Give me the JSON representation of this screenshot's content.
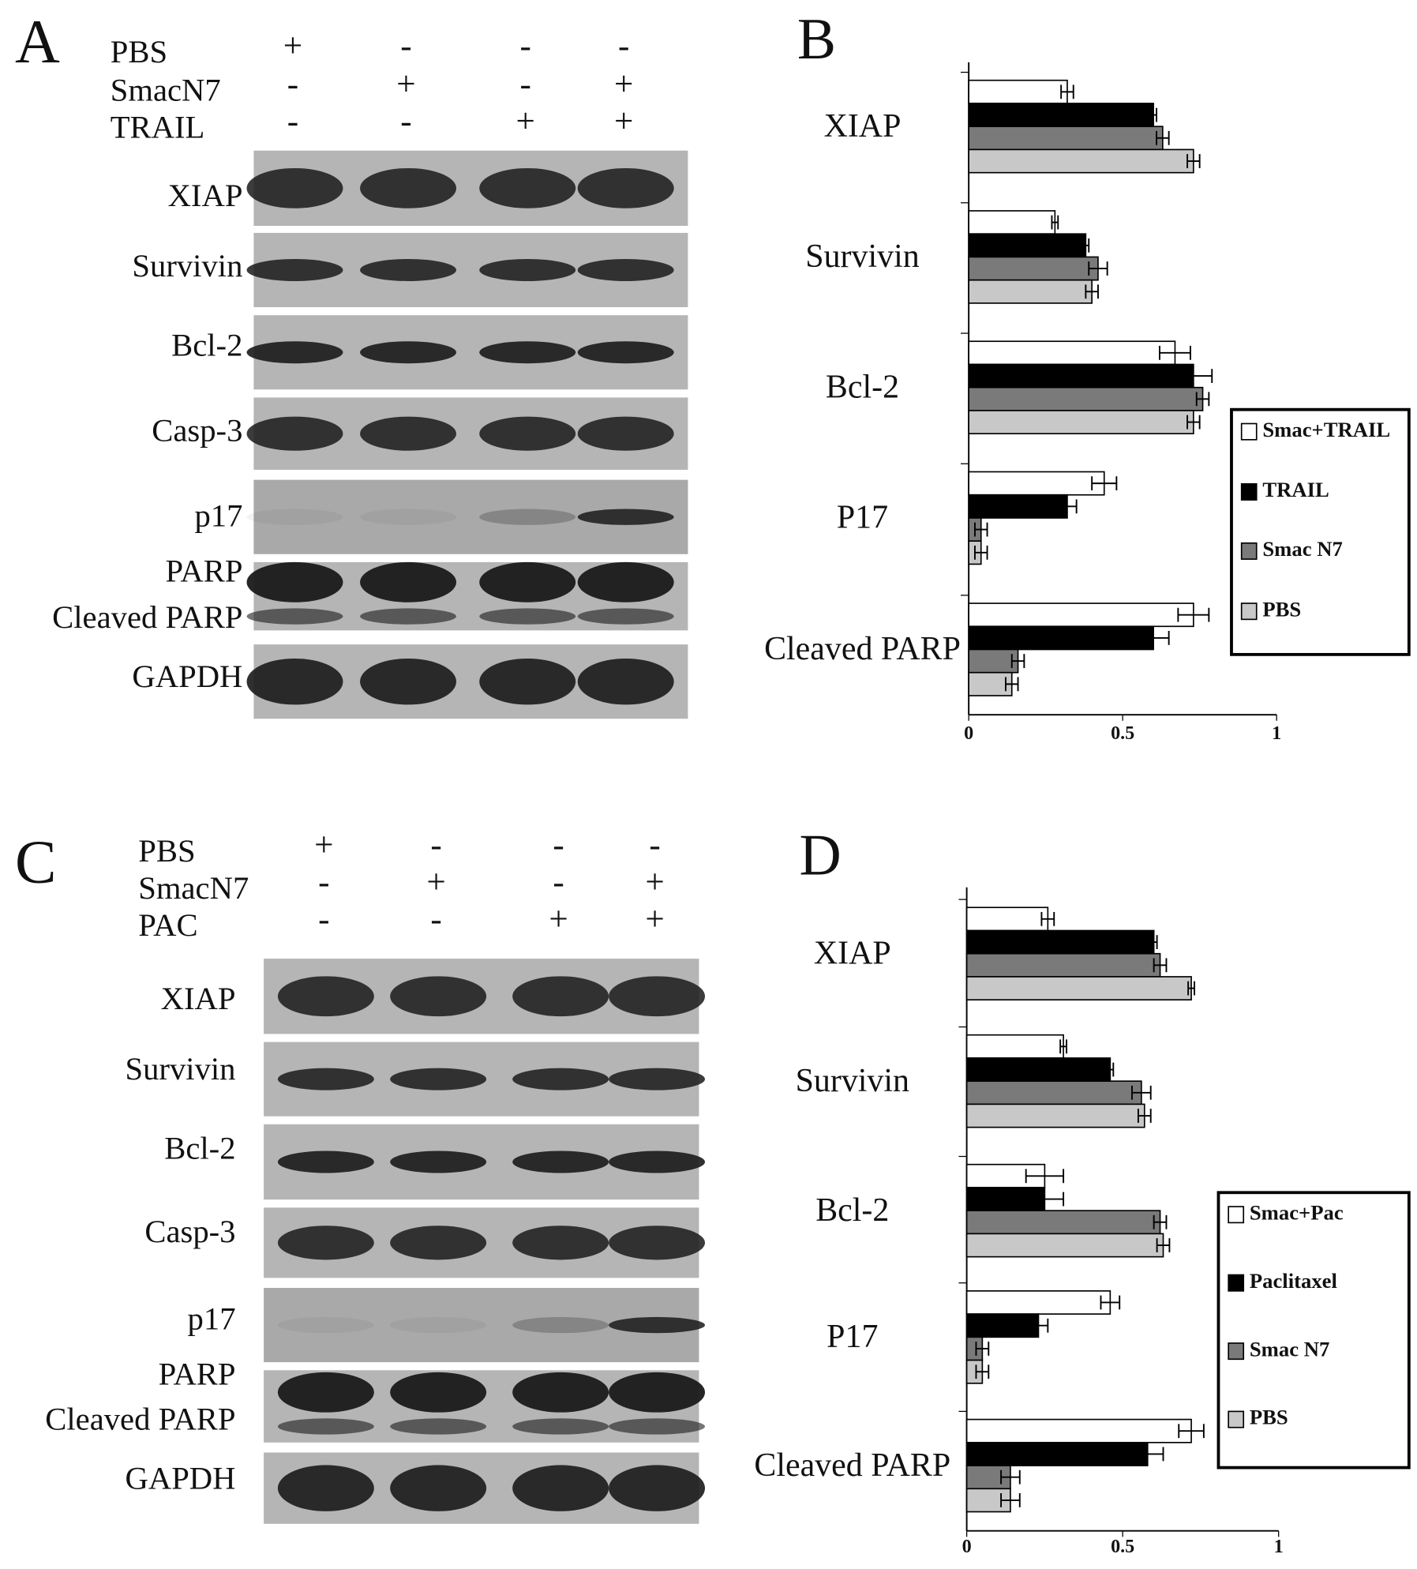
{
  "blots": [
    {
      "panel_label": "A",
      "treatments": [
        {
          "label": "PBS",
          "marks": [
            "+",
            "-",
            "-",
            "-"
          ]
        },
        {
          "label": "SmacN7",
          "marks": [
            "-",
            "+",
            "-",
            "+"
          ]
        },
        {
          "label": "TRAIL",
          "marks": [
            "-",
            "-",
            "+",
            "+"
          ]
        }
      ],
      "bands": [
        "XIAP",
        "Survivin",
        "Bcl-2",
        "Casp-3",
        "p17",
        "PARP",
        "Cleaved PARP",
        "GAPDH"
      ]
    },
    {
      "panel_label": "C",
      "treatments": [
        {
          "label": "PBS",
          "marks": [
            "+",
            "-",
            "-",
            "-"
          ]
        },
        {
          "label": "SmacN7",
          "marks": [
            "-",
            "+",
            "-",
            "+"
          ]
        },
        {
          "label": "PAC",
          "marks": [
            "-",
            "-",
            "+",
            "+"
          ]
        }
      ],
      "bands": [
        "XIAP",
        "Survivin",
        "Bcl-2",
        "Casp-3",
        "p17",
        "PARP",
        "Cleaved PARP",
        "GAPDH"
      ]
    }
  ],
  "chart_data": [
    {
      "type": "bar",
      "orientation": "horizontal",
      "panel_label": "B",
      "categories": [
        "XIAP",
        "Survivin",
        "Bcl-2",
        "P17",
        "Cleaved PARP"
      ],
      "series": [
        {
          "name": "Smac+TRAIL",
          "color": "#ffffff",
          "values": [
            0.32,
            0.28,
            0.67,
            0.44,
            0.73
          ],
          "errors": [
            0.02,
            0.01,
            0.05,
            0.04,
            0.05
          ]
        },
        {
          "name": "TRAIL",
          "color": "#000000",
          "values": [
            0.6,
            0.38,
            0.73,
            0.32,
            0.6
          ],
          "errors": [
            0.01,
            0.01,
            0.06,
            0.03,
            0.05
          ]
        },
        {
          "name": "Smac N7",
          "color": "#7a7a7a",
          "values": [
            0.63,
            0.42,
            0.76,
            0.04,
            0.16
          ],
          "errors": [
            0.02,
            0.03,
            0.02,
            0.02,
            0.02
          ]
        },
        {
          "name": "PBS",
          "color": "#c8c8c8",
          "values": [
            0.73,
            0.4,
            0.73,
            0.04,
            0.14
          ],
          "errors": [
            0.02,
            0.02,
            0.02,
            0.02,
            0.02
          ]
        }
      ],
      "xlim": [
        0,
        1
      ],
      "xticks": [
        0,
        0.5,
        1
      ],
      "legend": "right"
    },
    {
      "type": "bar",
      "orientation": "horizontal",
      "panel_label": "D",
      "categories": [
        "XIAP",
        "Survivin",
        "Bcl-2",
        "P17",
        "Cleaved PARP"
      ],
      "series": [
        {
          "name": "Smac+Pac",
          "color": "#ffffff",
          "values": [
            0.26,
            0.31,
            0.25,
            0.46,
            0.72
          ],
          "errors": [
            0.02,
            0.01,
            0.06,
            0.03,
            0.04
          ]
        },
        {
          "name": "Paclitaxel",
          "color": "#000000",
          "values": [
            0.6,
            0.46,
            0.25,
            0.23,
            0.58
          ],
          "errors": [
            0.01,
            0.01,
            0.06,
            0.03,
            0.05
          ]
        },
        {
          "name": "Smac N7",
          "color": "#7a7a7a",
          "values": [
            0.62,
            0.56,
            0.62,
            0.05,
            0.14
          ],
          "errors": [
            0.02,
            0.03,
            0.02,
            0.02,
            0.03
          ]
        },
        {
          "name": "PBS",
          "color": "#c8c8c8",
          "values": [
            0.72,
            0.57,
            0.63,
            0.05,
            0.14
          ],
          "errors": [
            0.01,
            0.02,
            0.02,
            0.02,
            0.03
          ]
        }
      ],
      "xlim": [
        0,
        1
      ],
      "xticks": [
        0,
        0.5,
        1
      ],
      "legend": "right"
    }
  ]
}
